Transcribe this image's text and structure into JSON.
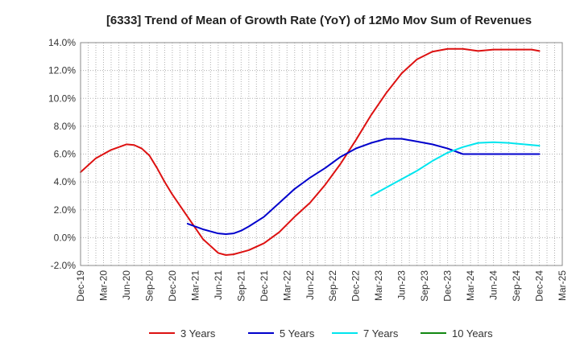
{
  "chart_data": {
    "type": "line",
    "title": "[6333]  Trend of Mean of Growth Rate (YoY) of 12Mo Mov Sum of Revenues",
    "xlabel": "",
    "ylabel": "",
    "ylim": [
      -2.0,
      14.0
    ],
    "yticks": [
      -2.0,
      0.0,
      2.0,
      4.0,
      6.0,
      8.0,
      10.0,
      12.0,
      14.0
    ],
    "ytick_labels": [
      "-2.0%",
      "0.0%",
      "2.0%",
      "4.0%",
      "6.0%",
      "8.0%",
      "10.0%",
      "12.0%",
      "14.0%"
    ],
    "x_range": [
      0,
      63
    ],
    "xtick_positions": [
      0,
      3,
      6,
      9,
      12,
      15,
      18,
      21,
      24,
      27,
      30,
      33,
      36,
      39,
      42,
      45,
      48,
      51,
      54,
      57,
      60,
      63
    ],
    "xtick_labels": [
      "Dec-19",
      "Mar-20",
      "Jun-20",
      "Sep-20",
      "Dec-20",
      "Mar-21",
      "Jun-21",
      "Sep-21",
      "Dec-21",
      "Mar-22",
      "Jun-22",
      "Sep-22",
      "Dec-22",
      "Mar-23",
      "Jun-23",
      "Sep-23",
      "Dec-23",
      "Mar-24",
      "Jun-24",
      "Sep-24",
      "Dec-24",
      "Mar-25"
    ],
    "grid": true,
    "legend_position": "bottom",
    "series": [
      {
        "name": "3 Years",
        "color": "#dd1111",
        "x": [
          0,
          2,
          4,
          6,
          7,
          8,
          9,
          10,
          11,
          12,
          14,
          16,
          18,
          19,
          20,
          21,
          22,
          24,
          26,
          28,
          30,
          32,
          34,
          36,
          38,
          40,
          42,
          44,
          46,
          48,
          50,
          52,
          54,
          56,
          57,
          58,
          59,
          60
        ],
        "values": [
          4.7,
          5.7,
          6.3,
          6.7,
          6.65,
          6.4,
          5.9,
          5.0,
          4.0,
          3.1,
          1.5,
          -0.1,
          -1.1,
          -1.25,
          -1.2,
          -1.05,
          -0.9,
          -0.4,
          0.4,
          1.5,
          2.5,
          3.8,
          5.3,
          7.0,
          8.8,
          10.4,
          11.8,
          12.8,
          13.35,
          13.55,
          13.55,
          13.4,
          13.5,
          13.5,
          13.5,
          13.5,
          13.5,
          13.4
        ]
      },
      {
        "name": "5 Years",
        "color": "#0000cc",
        "x": [
          14,
          16,
          18,
          19,
          20,
          21,
          22,
          24,
          26,
          28,
          30,
          32,
          34,
          36,
          38,
          40,
          42,
          44,
          46,
          48,
          50,
          52,
          54,
          56,
          58,
          60
        ],
        "values": [
          1.0,
          0.6,
          0.3,
          0.25,
          0.3,
          0.5,
          0.8,
          1.5,
          2.5,
          3.5,
          4.3,
          5.0,
          5.8,
          6.4,
          6.8,
          7.1,
          7.1,
          6.9,
          6.7,
          6.4,
          6.0,
          6.0,
          6.0,
          6.0,
          6.0,
          6.0
        ]
      },
      {
        "name": "7 Years",
        "color": "#00e5ee",
        "x": [
          38,
          40,
          42,
          44,
          46,
          48,
          50,
          52,
          54,
          56,
          58,
          60
        ],
        "values": [
          3.0,
          3.6,
          4.2,
          4.8,
          5.5,
          6.1,
          6.5,
          6.8,
          6.85,
          6.8,
          6.7,
          6.6
        ]
      },
      {
        "name": "10 Years",
        "color": "#118811",
        "x": [],
        "values": []
      }
    ]
  }
}
